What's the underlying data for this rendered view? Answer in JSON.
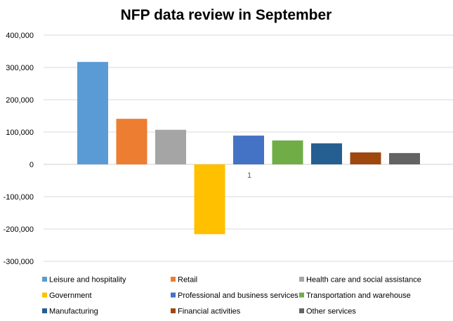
{
  "chart_data": {
    "type": "bar",
    "title": "NFP data review in September",
    "xlabel": "",
    "ylabel": "",
    "categories": [
      "1"
    ],
    "ylim": [
      -300000,
      400000
    ],
    "yticks": [
      400000,
      300000,
      200000,
      100000,
      0,
      -100000,
      -200000,
      -300000
    ],
    "ytick_labels": [
      "400,000",
      "300,000",
      "200,000",
      "100,000",
      "0",
      "-100,000",
      "-200,000",
      "-300,000"
    ],
    "grid": true,
    "legend_position": "bottom",
    "series": [
      {
        "name": "Leisure and hospitality",
        "values": [
          317000
        ],
        "color": "#5B9BD5"
      },
      {
        "name": "Retail",
        "values": [
          141000
        ],
        "color": "#ED7D31"
      },
      {
        "name": "Health care and social assistance",
        "values": [
          107000
        ],
        "color": "#A5A5A5"
      },
      {
        "name": "Government",
        "values": [
          -216000
        ],
        "color": "#FFC000"
      },
      {
        "name": "Professional and business services",
        "values": [
          89000
        ],
        "color": "#4472C4"
      },
      {
        "name": "Transportation and warehouse",
        "values": [
          74000
        ],
        "color": "#70AD47"
      },
      {
        "name": "Manufacturing",
        "values": [
          65000
        ],
        "color": "#255E91"
      },
      {
        "name": "Financial activities",
        "values": [
          37000
        ],
        "color": "#9E480E"
      },
      {
        "name": "Other services",
        "values": [
          35000
        ],
        "color": "#636363"
      }
    ]
  }
}
